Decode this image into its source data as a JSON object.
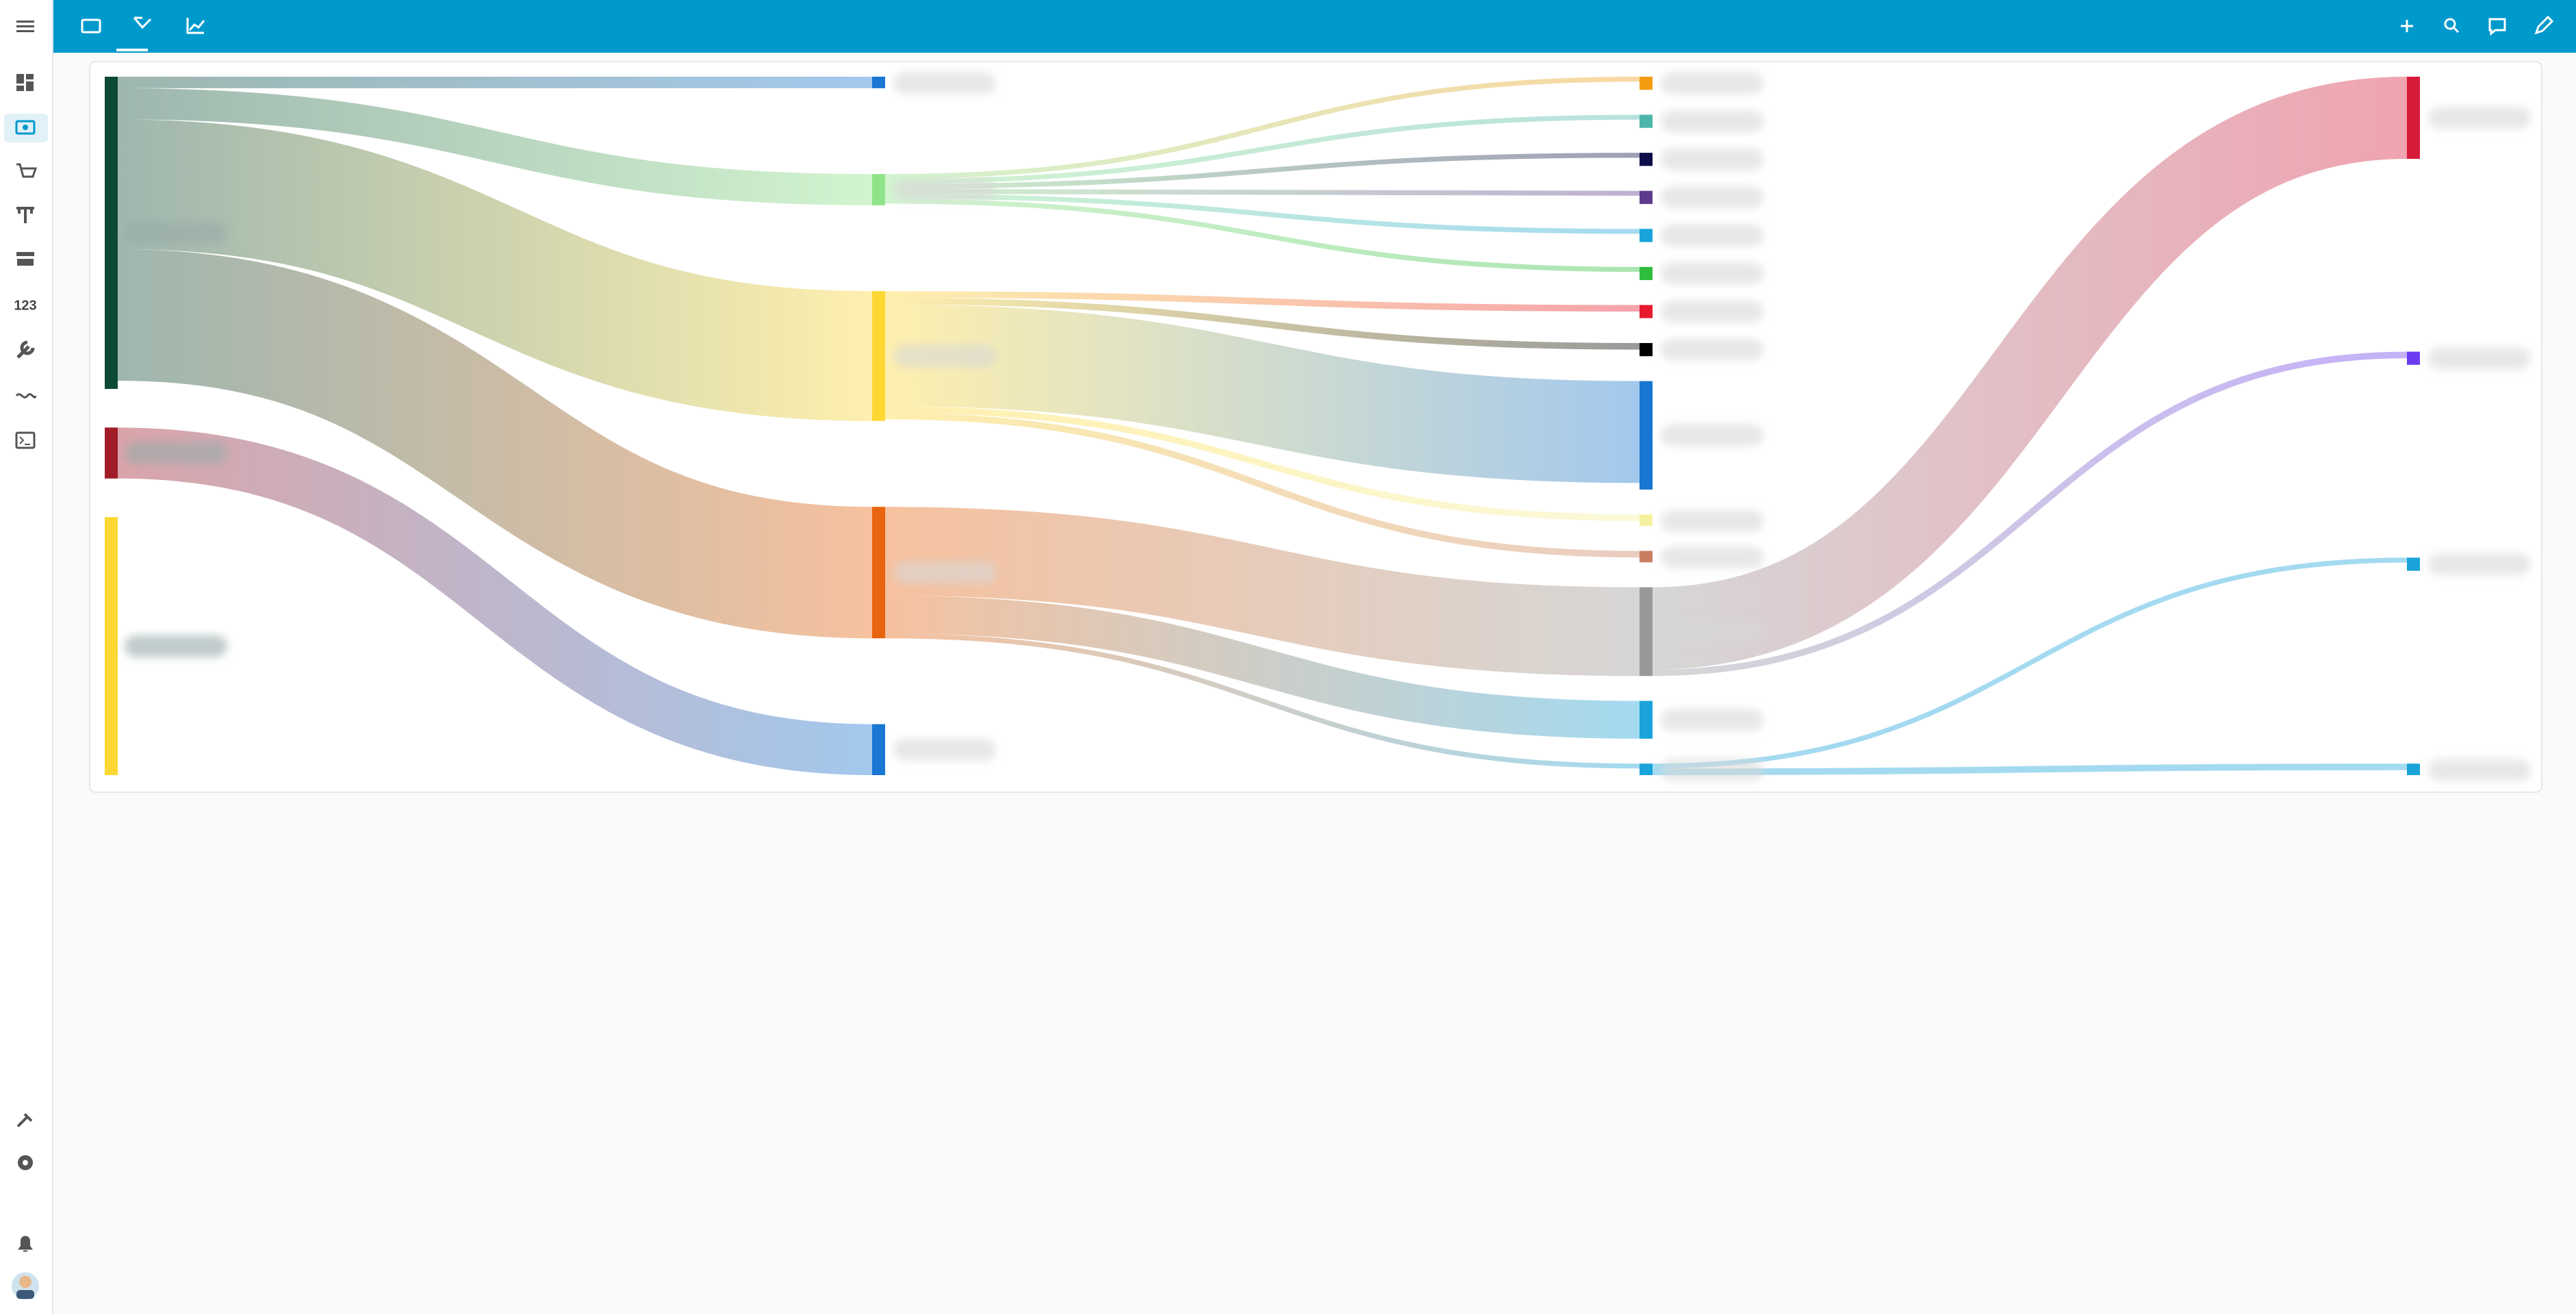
{
  "sidebar": {
    "numbers_icon": "123"
  },
  "chart_data": {
    "type": "sankey",
    "nodes": [
      {
        "value": 190,
        "color": "#0d4a35"
      },
      {
        "value": 31,
        "color": "#a01c28"
      },
      {
        "value": 157,
        "color": "#fdd835"
      },
      {
        "value": 7,
        "color": "#1976d2"
      },
      {
        "value": 19,
        "color": "#8fe388"
      },
      {
        "value": 79,
        "color": "#fdd835"
      },
      {
        "value": 80,
        "color": "#e8640e"
      },
      {
        "value": 31,
        "color": "#1976d2"
      },
      {
        "value": 8,
        "color": "#f39c12"
      },
      {
        "value": 8,
        "color": "#4db6ac"
      },
      {
        "value": 8,
        "color": "#0d0d4a"
      },
      {
        "value": 8,
        "color": "#5e3a8c"
      },
      {
        "value": 8,
        "color": "#1aa3db"
      },
      {
        "value": 8,
        "color": "#2ebd3e"
      },
      {
        "value": 8,
        "color": "#e8192c"
      },
      {
        "value": 8,
        "color": "#000000"
      },
      {
        "value": 66,
        "color": "#1976d2"
      },
      {
        "value": 7,
        "color": "#f5f0a0"
      },
      {
        "value": 7,
        "color": "#c97e62"
      },
      {
        "value": 54,
        "color": "#999999"
      },
      {
        "value": 23,
        "color": "#1aa3db"
      },
      {
        "value": 7,
        "color": "#1aa3db"
      },
      {
        "value": 50,
        "color": "#d81b3a"
      },
      {
        "value": 8,
        "color": "#6a3cf0"
      },
      {
        "value": 8,
        "color": "#1aa3db"
      },
      {
        "value": 7,
        "color": "#1aa3db"
      }
    ],
    "links": [
      {
        "source": 0,
        "target": 3,
        "value": 7
      },
      {
        "source": 0,
        "target": 4,
        "value": 19
      },
      {
        "source": 0,
        "target": 5,
        "value": 79
      },
      {
        "source": 0,
        "target": 6,
        "value": 80
      },
      {
        "source": 1,
        "target": 7,
        "value": 31
      },
      {
        "source": 4,
        "target": 8,
        "value": 3
      },
      {
        "source": 4,
        "target": 9,
        "value": 3
      },
      {
        "source": 4,
        "target": 10,
        "value": 3
      },
      {
        "source": 4,
        "target": 11,
        "value": 3
      },
      {
        "source": 4,
        "target": 12,
        "value": 3
      },
      {
        "source": 4,
        "target": 13,
        "value": 3
      },
      {
        "source": 5,
        "target": 14,
        "value": 4
      },
      {
        "source": 5,
        "target": 15,
        "value": 4
      },
      {
        "source": 5,
        "target": 16,
        "value": 62
      },
      {
        "source": 5,
        "target": 17,
        "value": 4
      },
      {
        "source": 5,
        "target": 18,
        "value": 4
      },
      {
        "source": 6,
        "target": 19,
        "value": 54
      },
      {
        "source": 6,
        "target": 20,
        "value": 23
      },
      {
        "source": 6,
        "target": 21,
        "value": 3
      },
      {
        "source": 19,
        "target": 22,
        "value": 50
      },
      {
        "source": 19,
        "target": 23,
        "value": 4
      },
      {
        "source": 21,
        "target": 24,
        "value": 3
      },
      {
        "source": 21,
        "target": 25,
        "value": 4
      }
    ]
  }
}
